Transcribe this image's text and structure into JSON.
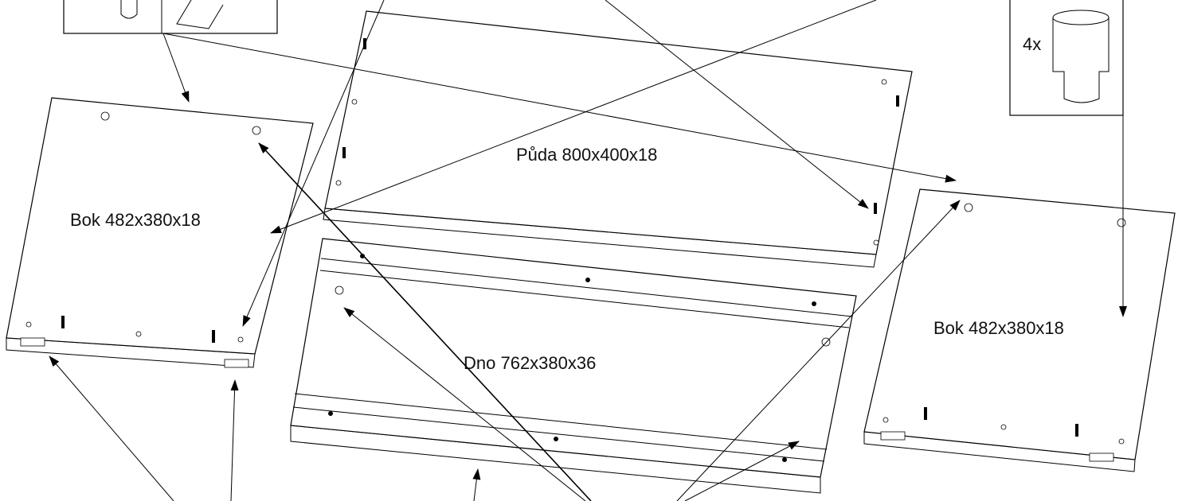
{
  "parts": [
    {
      "label": "Půda 800x400x18"
    },
    {
      "label": "Bok 482x380x18"
    },
    {
      "label": "Dno 762x380x36"
    },
    {
      "label": "Bok 482x380x18"
    }
  ],
  "hardware": {
    "count": "4x"
  }
}
